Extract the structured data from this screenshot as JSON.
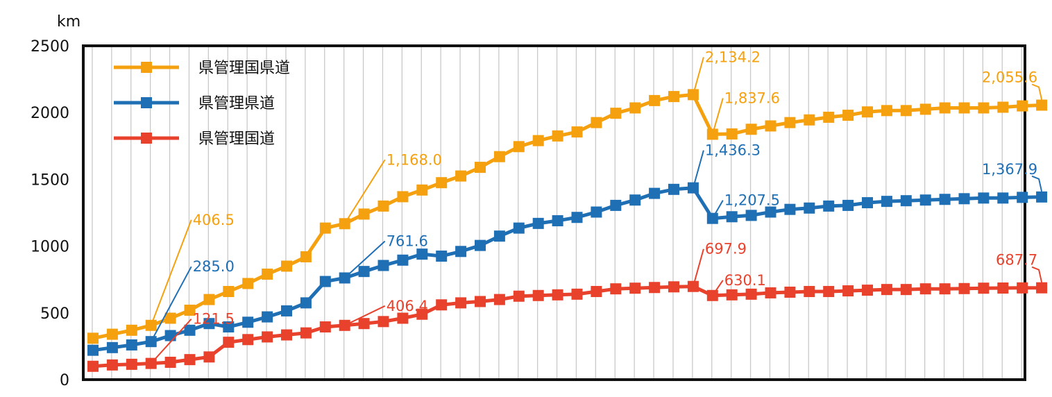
{
  "chart_data": {
    "type": "line",
    "unit_label": "km",
    "ylim": [
      0,
      2500
    ],
    "yticks": [
      0,
      500,
      1000,
      1500,
      2000,
      2500
    ],
    "grid": "vertical",
    "legend_position": "top-left",
    "x": [
      1,
      2,
      3,
      4,
      5,
      6,
      7,
      8,
      9,
      10,
      11,
      12,
      13,
      14,
      15,
      16,
      17,
      18,
      19,
      20,
      21,
      22,
      23,
      24,
      25,
      26,
      27,
      28,
      29,
      30,
      31,
      32,
      33,
      34,
      35,
      36,
      37,
      38,
      39,
      40,
      41,
      42,
      43,
      44,
      45,
      46,
      47,
      48,
      49,
      50
    ],
    "series": [
      {
        "name": "県管理国県道",
        "color": "#F5A10F",
        "values": [
          310,
          340,
          370,
          406.5,
          460,
          520,
          600,
          660,
          720,
          790,
          850,
          920,
          1135,
          1168,
          1240,
          1300,
          1370,
          1420,
          1475,
          1525,
          1590,
          1670,
          1745,
          1790,
          1825,
          1855,
          1925,
          1995,
          2035,
          2090,
          2120,
          2134.2,
          1837.6,
          1840,
          1875,
          1900,
          1925,
          1945,
          1965,
          1980,
          2005,
          2015,
          2015,
          2025,
          2035,
          2035,
          2035,
          2040,
          2050,
          2055.6
        ]
      },
      {
        "name": "県管理県道",
        "color": "#1F6FB5",
        "values": [
          220,
          240,
          260,
          285,
          330,
          370,
          420,
          395,
          430,
          470,
          515,
          575,
          735,
          761.6,
          810,
          855,
          895,
          940,
          925,
          960,
          1005,
          1075,
          1135,
          1170,
          1190,
          1215,
          1255,
          1305,
          1345,
          1395,
          1425,
          1436.3,
          1207.5,
          1220,
          1230,
          1255,
          1275,
          1285,
          1300,
          1305,
          1325,
          1335,
          1340,
          1345,
          1350,
          1355,
          1360,
          1360,
          1365,
          1367.9
        ]
      },
      {
        "name": "県管理国道",
        "color": "#E8412C",
        "values": [
          100,
          110,
          115,
          121.5,
          130,
          150,
          170,
          280,
          300,
          320,
          335,
          350,
          395,
          406.4,
          420,
          435,
          460,
          490,
          560,
          575,
          585,
          600,
          625,
          630,
          635,
          640,
          660,
          680,
          685,
          690,
          695,
          697.9,
          630.1,
          635,
          640,
          650,
          655,
          660,
          660,
          665,
          670,
          675,
          675,
          680,
          680,
          682,
          685,
          686,
          687,
          687.7
        ]
      }
    ],
    "data_labels": [
      {
        "series": 0,
        "index": 3,
        "text": "406.5"
      },
      {
        "series": 1,
        "index": 3,
        "text": "285.0"
      },
      {
        "series": 2,
        "index": 3,
        "text": "121.5"
      },
      {
        "series": 0,
        "index": 13,
        "text": "1,168.0"
      },
      {
        "series": 1,
        "index": 13,
        "text": "761.6"
      },
      {
        "series": 2,
        "index": 13,
        "text": "406.4"
      },
      {
        "series": 0,
        "index": 31,
        "text": "2,134.2"
      },
      {
        "series": 1,
        "index": 31,
        "text": "1,436.3"
      },
      {
        "series": 2,
        "index": 31,
        "text": "697.9"
      },
      {
        "series": 0,
        "index": 32,
        "text": "1,837.6"
      },
      {
        "series": 1,
        "index": 32,
        "text": "1,207.5"
      },
      {
        "series": 2,
        "index": 32,
        "text": "630.1"
      },
      {
        "series": 0,
        "index": 49,
        "text": "2,055.6"
      },
      {
        "series": 1,
        "index": 49,
        "text": "1,367.9"
      },
      {
        "series": 2,
        "index": 49,
        "text": "687.7"
      }
    ]
  }
}
